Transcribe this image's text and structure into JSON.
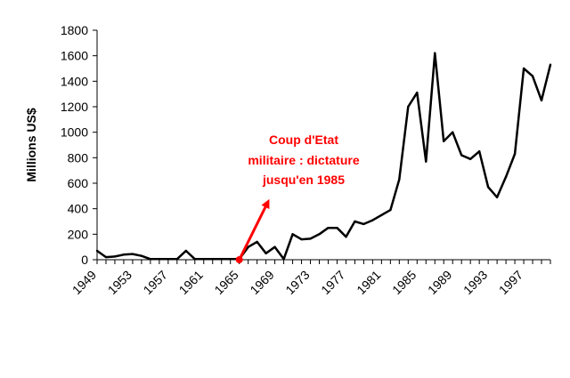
{
  "chart_data": {
    "type": "line",
    "ylabel": "Millions US$",
    "ylim": [
      0,
      1800
    ],
    "yticks": [
      0,
      200,
      400,
      600,
      800,
      1000,
      1200,
      1400,
      1600,
      1800
    ],
    "xlim": [
      1949,
      2000
    ],
    "xticks": [
      1949,
      1953,
      1957,
      1961,
      1965,
      1969,
      1973,
      1977,
      1981,
      1985,
      1989,
      1993,
      1997
    ],
    "grid": false,
    "legend": "none",
    "series_color": "#000000",
    "accent_color": "#ff0000",
    "series": [
      {
        "x": [
          1949,
          1950,
          1951,
          1952,
          1953,
          1954,
          1955,
          1956,
          1957,
          1958,
          1959,
          1960,
          1961,
          1962,
          1963,
          1964,
          1965,
          1966,
          1967,
          1968,
          1969,
          1970,
          1971,
          1972,
          1973,
          1974,
          1975,
          1976,
          1977,
          1978,
          1979,
          1980,
          1981,
          1982,
          1983,
          1984,
          1985,
          1986,
          1987,
          1988,
          1989,
          1990,
          1991,
          1992,
          1993,
          1994,
          1995,
          1996,
          1997,
          1998,
          1999,
          2000
        ],
        "values": [
          70,
          20,
          25,
          40,
          45,
          30,
          5,
          5,
          5,
          5,
          70,
          5,
          5,
          5,
          5,
          5,
          5,
          100,
          140,
          50,
          100,
          5,
          200,
          160,
          165,
          200,
          250,
          250,
          180,
          300,
          280,
          310,
          350,
          390,
          630,
          1200,
          1310,
          770,
          1620,
          930,
          1000,
          820,
          790,
          850,
          570,
          490,
          650,
          830,
          1500,
          1440,
          1250,
          1530
        ]
      }
    ],
    "annotations": [
      {
        "lines": [
          "Coup d'Etat",
          "militaire : dictature",
          "jusqu'en 1985"
        ],
        "arrow_from": [
          1965,
          0
        ],
        "arrow_to": [
          1968.2,
          450
        ]
      }
    ]
  }
}
